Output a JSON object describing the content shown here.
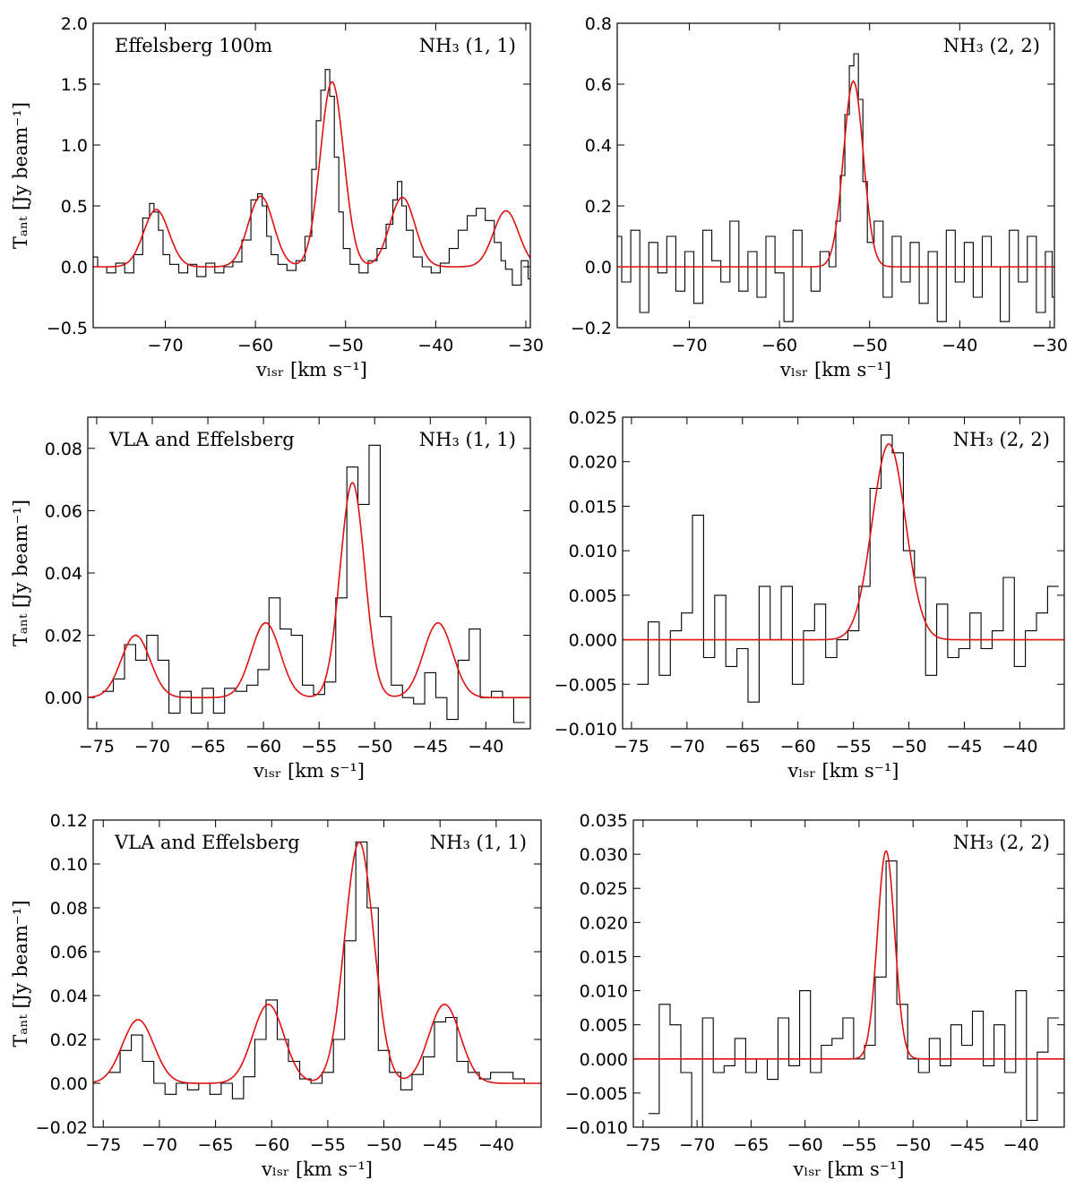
{
  "chart_data": [
    {
      "type": "line",
      "annotation_left": "Effelsberg 100m",
      "annotation_right": "NH₃ (1, 1)",
      "xlabel": "vₗₛᵣ [km s⁻¹]",
      "ylabel": "Tₐₙₜ [Jy beam⁻¹]",
      "xlim": [
        -78,
        -29.5
      ],
      "ylim": [
        -0.5,
        2.0
      ],
      "xticks": [
        -70,
        -60,
        -50,
        -40,
        -30
      ],
      "xtick_labels": [
        "−70",
        "−60",
        "−50",
        "−40",
        "−30"
      ],
      "yticks": [
        -0.5,
        0.0,
        0.5,
        1.0,
        1.5,
        2.0
      ],
      "ytick_labels": [
        "−0.5",
        "0.0",
        "0.5",
        "1.0",
        "1.5",
        "2.0"
      ],
      "series": [
        {
          "kind": "observed",
          "color": "#000000",
          "x": [
            -78,
            -77,
            -76,
            -75,
            -74,
            -73,
            -72,
            -71.5,
            -71,
            -70.5,
            -70,
            -69,
            -68,
            -67,
            -66,
            -65,
            -64,
            -63,
            -62,
            -61,
            -60,
            -59.5,
            -59,
            -58.5,
            -58,
            -57,
            -56,
            -55,
            -54,
            -53.5,
            -53,
            -52.5,
            -52,
            -51.5,
            -51,
            -50.5,
            -50,
            -49,
            -48,
            -47,
            -46,
            -45,
            -44.5,
            -44,
            -43.5,
            -43,
            -42,
            -41,
            -40,
            -39,
            -38,
            -37,
            -36,
            -35,
            -34,
            -33,
            -32.5,
            -32,
            -31,
            -30,
            -29.5
          ],
          "y": [
            0.08,
            0.0,
            -0.05,
            0.03,
            -0.05,
            0.1,
            0.4,
            0.52,
            0.45,
            0.3,
            0.1,
            0.02,
            -0.05,
            0.02,
            -0.08,
            0.03,
            -0.05,
            0.0,
            0.04,
            0.22,
            0.55,
            0.6,
            0.5,
            0.25,
            0.1,
            0.02,
            -0.03,
            0.05,
            0.25,
            0.8,
            1.2,
            1.45,
            1.62,
            1.4,
            0.9,
            0.45,
            0.15,
            0.02,
            -0.05,
            0.05,
            0.15,
            0.35,
            0.55,
            0.7,
            0.5,
            0.3,
            0.08,
            0.0,
            -0.05,
            0.03,
            0.15,
            0.3,
            0.42,
            0.48,
            0.38,
            0.2,
            0.05,
            -0.02,
            -0.15,
            0.05,
            -0.1
          ]
        },
        {
          "kind": "fit",
          "color": "#dd1111",
          "components": [
            {
              "amp": 0.47,
              "center": -71.0,
              "sigma": 1.4
            },
            {
              "amp": 0.58,
              "center": -59.4,
              "sigma": 1.4
            },
            {
              "amp": 1.52,
              "center": -51.5,
              "sigma": 1.3
            },
            {
              "amp": 0.57,
              "center": -43.7,
              "sigma": 1.4
            },
            {
              "amp": 0.46,
              "center": -32.2,
              "sigma": 1.4
            }
          ]
        }
      ]
    },
    {
      "type": "line",
      "annotation_left": "",
      "annotation_right": "NH₃ (2, 2)",
      "xlabel": "vₗₛᵣ [km s⁻¹]",
      "ylabel": "",
      "xlim": [
        -78,
        -29.5
      ],
      "ylim": [
        -0.2,
        0.8
      ],
      "xticks": [
        -70,
        -60,
        -50,
        -40,
        -30
      ],
      "xtick_labels": [
        "−70",
        "−60",
        "−50",
        "−40",
        "−30"
      ],
      "yticks": [
        -0.2,
        0.0,
        0.2,
        0.4,
        0.6,
        0.8
      ],
      "ytick_labels": [
        "−0.2",
        "0.0",
        "0.2",
        "0.4",
        "0.6",
        "0.8"
      ],
      "series": [
        {
          "kind": "observed",
          "color": "#000000",
          "x": [
            -78,
            -77,
            -76,
            -75,
            -74,
            -73,
            -72,
            -71,
            -70,
            -69,
            -68,
            -67,
            -66,
            -65,
            -64,
            -63,
            -62,
            -61,
            -60,
            -59,
            -58,
            -57,
            -56,
            -55,
            -54,
            -53.5,
            -53,
            -52.5,
            -52,
            -51.5,
            -51,
            -50.5,
            -50,
            -49,
            -48,
            -47,
            -46,
            -45,
            -44,
            -43,
            -42,
            -41,
            -40,
            -39,
            -38,
            -37,
            -36,
            -35,
            -34,
            -33,
            -32,
            -31,
            -30,
            -29.5
          ],
          "y": [
            0.1,
            -0.05,
            0.12,
            -0.15,
            0.08,
            -0.02,
            0.1,
            -0.08,
            0.05,
            -0.12,
            0.12,
            0.02,
            -0.05,
            0.15,
            -0.08,
            0.05,
            -0.1,
            0.1,
            -0.02,
            -0.18,
            0.12,
            0.0,
            -0.08,
            0.05,
            0.0,
            0.15,
            0.3,
            0.5,
            0.66,
            0.7,
            0.55,
            0.28,
            0.08,
            0.15,
            -0.1,
            0.1,
            -0.05,
            0.08,
            -0.12,
            0.05,
            -0.18,
            0.12,
            -0.05,
            0.08,
            -0.1,
            0.1,
            0.0,
            -0.18,
            0.12,
            -0.05,
            0.1,
            -0.15,
            0.05,
            -0.1
          ]
        },
        {
          "kind": "fit",
          "color": "#dd1111",
          "components": [
            {
              "amp": 0.61,
              "center": -51.8,
              "sigma": 1.1
            }
          ]
        }
      ]
    },
    {
      "type": "line",
      "annotation_left": "VLA and Effelsberg",
      "annotation_right": "NH₃ (1, 1)",
      "xlabel": "vₗₛᵣ [km s⁻¹]",
      "ylabel": "Tₐₙₜ [Jy beam⁻¹]",
      "xlim": [
        -75.8,
        -36.0
      ],
      "ylim": [
        -0.01,
        0.09
      ],
      "xticks": [
        -75,
        -70,
        -65,
        -60,
        -55,
        -50,
        -45,
        -40
      ],
      "xtick_labels": [
        "−75",
        "−70",
        "−65",
        "−60",
        "−55",
        "−50",
        "−45",
        "−40"
      ],
      "yticks": [
        0.0,
        0.02,
        0.04,
        0.06,
        0.08
      ],
      "ytick_labels": [
        "0.00",
        "0.02",
        "0.04",
        "0.06",
        "0.08"
      ],
      "series": [
        {
          "kind": "observed",
          "color": "#000000",
          "x": [
            -74,
            -73,
            -72,
            -71,
            -70,
            -69,
            -68,
            -67,
            -66,
            -65,
            -64,
            -63,
            -62,
            -61,
            -60,
            -59,
            -58,
            -57,
            -56,
            -55,
            -54,
            -53,
            -52,
            -51,
            -50,
            -49,
            -48,
            -47,
            -46,
            -45,
            -44,
            -43,
            -42,
            -41,
            -40,
            -39,
            -38,
            -37
          ],
          "y": [
            0.002,
            0.006,
            0.017,
            0.012,
            0.02,
            0.012,
            -0.005,
            0.002,
            -0.005,
            0.003,
            -0.005,
            0.003,
            0.002,
            0.004,
            0.009,
            0.032,
            0.022,
            0.02,
            0.004,
            0.001,
            0.005,
            0.032,
            0.074,
            0.062,
            0.081,
            0.026,
            0.004,
            0.0,
            -0.002,
            0.008,
            0.0,
            -0.007,
            0.012,
            0.022,
            0.0,
            0.002,
            0.0,
            -0.008
          ]
        },
        {
          "kind": "fit",
          "color": "#dd1111",
          "components": [
            {
              "amp": 0.02,
              "center": -71.5,
              "sigma": 1.3
            },
            {
              "amp": 0.024,
              "center": -59.8,
              "sigma": 1.3
            },
            {
              "amp": 0.069,
              "center": -52.0,
              "sigma": 1.1
            },
            {
              "amp": 0.024,
              "center": -44.3,
              "sigma": 1.3
            }
          ]
        }
      ]
    },
    {
      "type": "line",
      "annotation_left": "",
      "annotation_right": "NH₃ (2, 2)",
      "xlabel": "vₗₛᵣ [km s⁻¹]",
      "ylabel": "",
      "xlim": [
        -75.8,
        -36.0
      ],
      "ylim": [
        -0.01,
        0.025
      ],
      "xticks": [
        -75,
        -70,
        -65,
        -60,
        -55,
        -50,
        -45,
        -40
      ],
      "xtick_labels": [
        "−75",
        "−70",
        "−65",
        "−60",
        "−55",
        "−50",
        "−45",
        "−40"
      ],
      "yticks": [
        -0.01,
        -0.005,
        0.0,
        0.005,
        0.01,
        0.015,
        0.02,
        0.025
      ],
      "ytick_labels": [
        "−0.010",
        "−0.005",
        "0.000",
        "0.005",
        "0.010",
        "0.015",
        "0.020",
        "0.025"
      ],
      "series": [
        {
          "kind": "observed",
          "color": "#000000",
          "x": [
            -74,
            -73,
            -72,
            -71,
            -70,
            -69,
            -68,
            -67,
            -66,
            -65,
            -64,
            -63,
            -62,
            -61,
            -60,
            -59,
            -58,
            -57,
            -56,
            -55,
            -54,
            -53,
            -52,
            -51,
            -50,
            -49,
            -48,
            -47,
            -46,
            -45,
            -44,
            -43,
            -42,
            -41,
            -40,
            -39,
            -38,
            -37
          ],
          "y": [
            -0.005,
            0.002,
            -0.004,
            0.001,
            0.003,
            0.014,
            -0.002,
            0.005,
            -0.003,
            -0.001,
            -0.007,
            0.006,
            0.0,
            0.006,
            -0.005,
            0.001,
            0.004,
            -0.002,
            0.0,
            0.001,
            0.006,
            0.017,
            0.023,
            0.021,
            0.01,
            0.007,
            -0.004,
            0.004,
            -0.002,
            -0.001,
            0.003,
            -0.001,
            0.001,
            0.007,
            -0.003,
            0.001,
            0.003,
            0.006
          ]
        },
        {
          "kind": "fit",
          "color": "#dd1111",
          "components": [
            {
              "amp": 0.022,
              "center": -51.8,
              "sigma": 1.5
            }
          ]
        }
      ]
    },
    {
      "type": "line",
      "annotation_left": "VLA and Effelsberg",
      "annotation_right": "NH₃ (1, 1)",
      "xlabel": "vₗₛᵣ [km s⁻¹]",
      "ylabel": "Tₐₙₜ [Jy beam⁻¹]",
      "xlim": [
        -75.9,
        -36.0
      ],
      "ylim": [
        -0.02,
        0.12
      ],
      "xticks": [
        -75,
        -70,
        -65,
        -60,
        -55,
        -50,
        -45,
        -40
      ],
      "xtick_labels": [
        "−75",
        "−70",
        "−65",
        "−60",
        "−55",
        "−50",
        "−45",
        "−40"
      ],
      "yticks": [
        -0.02,
        0.0,
        0.02,
        0.04,
        0.06,
        0.08,
        0.1,
        0.12
      ],
      "ytick_labels": [
        "−0.02",
        "0.00",
        "0.02",
        "0.04",
        "0.06",
        "0.08",
        "0.10",
        "0.12"
      ],
      "series": [
        {
          "kind": "observed",
          "color": "#000000",
          "x": [
            -74,
            -73,
            -72,
            -71,
            -70,
            -69,
            -68,
            -67,
            -66,
            -65,
            -64,
            -63,
            -62,
            -61,
            -60,
            -59,
            -58,
            -57,
            -56,
            -55,
            -54,
            -53,
            -52,
            -51,
            -50,
            -49,
            -48,
            -47,
            -46,
            -45,
            -44,
            -43,
            -42,
            -41,
            -40,
            -39,
            -38,
            -37
          ],
          "y": [
            0.005,
            0.015,
            0.022,
            0.01,
            0.0,
            -0.005,
            0.0,
            -0.003,
            0.0,
            -0.005,
            0.0,
            -0.007,
            0.003,
            0.02,
            0.038,
            0.02,
            0.01,
            0.002,
            0.0,
            0.005,
            0.02,
            0.065,
            0.11,
            0.08,
            0.015,
            0.005,
            -0.003,
            0.004,
            0.012,
            0.028,
            0.03,
            0.01,
            0.005,
            0.002,
            0.005,
            0.005,
            0.002,
            0.0
          ]
        },
        {
          "kind": "fit",
          "color": "#dd1111",
          "components": [
            {
              "amp": 0.029,
              "center": -71.9,
              "sigma": 1.4
            },
            {
              "amp": 0.036,
              "center": -60.3,
              "sigma": 1.4
            },
            {
              "amp": 0.11,
              "center": -52.2,
              "sigma": 1.3
            },
            {
              "amp": 0.036,
              "center": -44.6,
              "sigma": 1.4
            }
          ]
        }
      ]
    },
    {
      "type": "line",
      "annotation_left": "",
      "annotation_right": "NH₃ (2, 2)",
      "xlabel": "vₗₛᵣ [km s⁻¹]",
      "ylabel": "",
      "xlim": [
        -75.9,
        -36.0
      ],
      "ylim": [
        -0.01,
        0.035
      ],
      "xticks": [
        -75,
        -70,
        -65,
        -60,
        -55,
        -50,
        -45,
        -40
      ],
      "xtick_labels": [
        "−75",
        "−70",
        "−65",
        "−60",
        "−55",
        "−50",
        "−45",
        "−40"
      ],
      "yticks": [
        -0.01,
        -0.005,
        0.0,
        0.005,
        0.01,
        0.015,
        0.02,
        0.025,
        0.03,
        0.035
      ],
      "ytick_labels": [
        "−0.010",
        "−0.005",
        "0.000",
        "0.005",
        "0.010",
        "0.015",
        "0.020",
        "0.025",
        "0.030",
        "0.035"
      ],
      "series": [
        {
          "kind": "observed",
          "color": "#000000",
          "x": [
            -74,
            -73,
            -72,
            -71,
            -70,
            -69,
            -68,
            -67,
            -66,
            -65,
            -64,
            -63,
            -62,
            -61,
            -60,
            -59,
            -58,
            -57,
            -56,
            -55,
            -54,
            -53,
            -52,
            -51,
            -50,
            -49,
            -48,
            -47,
            -46,
            -45,
            -44,
            -43,
            -42,
            -41,
            -40,
            -39,
            -38,
            -37
          ],
          "y": [
            -0.008,
            0.008,
            0.005,
            -0.002,
            -0.01,
            0.006,
            -0.002,
            -0.001,
            0.003,
            -0.002,
            0.0,
            -0.003,
            0.006,
            -0.001,
            0.01,
            -0.002,
            0.002,
            0.003,
            0.006,
            0.0,
            0.002,
            0.012,
            0.029,
            0.008,
            0.0,
            -0.002,
            0.003,
            -0.001,
            0.005,
            0.002,
            0.007,
            -0.001,
            0.005,
            -0.002,
            0.01,
            -0.009,
            0.001,
            0.006
          ]
        },
        {
          "kind": "fit",
          "color": "#dd1111",
          "components": [
            {
              "amp": 0.0305,
              "center": -52.5,
              "sigma": 0.8
            }
          ]
        }
      ]
    }
  ]
}
